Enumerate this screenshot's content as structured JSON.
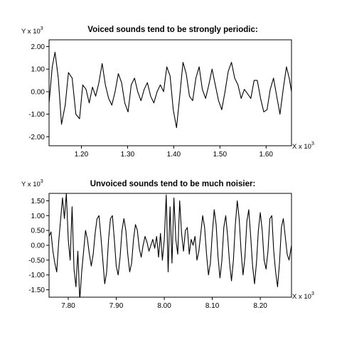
{
  "chart_data": [
    {
      "type": "line",
      "title": "Voiced sounds tend to be strongly periodic:",
      "y_multiplier_label": "Y x 10",
      "x_multiplier_label": "X x 10",
      "multiplier_exponent": "3",
      "xlim": [
        1.13,
        1.655
      ],
      "ylim": [
        -2.4,
        2.3
      ],
      "x_ticks": [
        1.2,
        1.3,
        1.4,
        1.5,
        1.6
      ],
      "x_tick_labels": [
        "1.20",
        "1.30",
        "1.40",
        "1.50",
        "1.60"
      ],
      "y_ticks": [
        2.0,
        1.0,
        0.0,
        -1.0,
        -2.0
      ],
      "y_tick_labels": [
        "2.00",
        "1.00",
        "0.00",
        "-1.00",
        "-2.00"
      ],
      "grid": false,
      "series": [
        {
          "x": [
            1.13,
            1.137,
            1.143,
            1.15,
            1.157,
            1.165,
            1.172,
            1.18,
            1.188,
            1.196,
            1.203,
            1.21,
            1.217,
            1.224,
            1.231,
            1.238,
            1.245,
            1.252,
            1.259,
            1.266,
            1.273,
            1.28,
            1.287,
            1.294,
            1.301,
            1.308,
            1.315,
            1.322,
            1.329,
            1.336,
            1.343,
            1.35,
            1.357,
            1.364,
            1.371,
            1.378,
            1.385,
            1.392,
            1.399,
            1.406,
            1.413,
            1.42,
            1.427,
            1.434,
            1.441,
            1.448,
            1.455,
            1.462,
            1.469,
            1.476,
            1.483,
            1.49,
            1.497,
            1.504,
            1.511,
            1.518,
            1.525,
            1.532,
            1.539,
            1.546,
            1.553,
            1.56,
            1.567,
            1.574,
            1.581,
            1.588,
            1.595,
            1.602,
            1.609,
            1.616,
            1.623,
            1.63,
            1.637,
            1.644,
            1.65,
            1.655
          ],
          "y": [
            -0.5,
            1.1,
            1.75,
            0.6,
            -1.45,
            -0.6,
            0.85,
            0.6,
            -1.0,
            -1.2,
            0.3,
            0.1,
            -0.5,
            0.2,
            -0.2,
            0.4,
            1.25,
            0.3,
            -0.3,
            -0.6,
            0.0,
            0.8,
            0.4,
            -0.5,
            -0.9,
            0.3,
            0.6,
            0.0,
            -0.4,
            0.1,
            0.4,
            -0.2,
            -0.5,
            0.0,
            0.3,
            0.0,
            1.1,
            0.7,
            -0.8,
            -1.6,
            -0.2,
            1.3,
            0.8,
            -0.2,
            -0.4,
            0.6,
            1.1,
            0.1,
            -0.3,
            0.3,
            1.0,
            0.3,
            -0.4,
            -0.8,
            0.0,
            0.9,
            1.3,
            0.6,
            0.3,
            -0.3,
            0.1,
            -0.1,
            -0.3,
            0.5,
            0.5,
            -0.3,
            -0.9,
            -0.8,
            0.1,
            0.6,
            -0.2,
            -1.0,
            0.1,
            1.1,
            0.6,
            0.0
          ]
        }
      ]
    },
    {
      "type": "line",
      "title": "Unvoiced sounds tend to be much noisier:",
      "y_multiplier_label": "Y x 10",
      "x_multiplier_label": "X x 10",
      "multiplier_exponent": "3",
      "xlim": [
        7.76,
        8.265
      ],
      "ylim": [
        -1.75,
        1.75
      ],
      "x_ticks": [
        7.8,
        7.9,
        8.0,
        8.1,
        8.2
      ],
      "x_tick_labels": [
        "7.80",
        "7.90",
        "8.00",
        "8.10",
        "8.20"
      ],
      "y_ticks": [
        1.5,
        1.0,
        0.5,
        0.0,
        -0.5,
        -1.0,
        -1.5
      ],
      "y_tick_labels": [
        "1.50",
        "1.00",
        "0.50",
        "0.00",
        "-0.50",
        "-1.00",
        "-1.50"
      ],
      "grid": false,
      "series": [
        {
          "x": [
            7.76,
            7.764,
            7.768,
            7.772,
            7.776,
            7.78,
            7.784,
            7.788,
            7.792,
            7.796,
            7.8,
            7.804,
            7.808,
            7.812,
            7.816,
            7.82,
            7.824,
            7.828,
            7.832,
            7.836,
            7.84,
            7.844,
            7.848,
            7.852,
            7.856,
            7.86,
            7.864,
            7.868,
            7.872,
            7.876,
            7.88,
            7.884,
            7.888,
            7.892,
            7.896,
            7.9,
            7.904,
            7.908,
            7.912,
            7.916,
            7.92,
            7.924,
            7.928,
            7.932,
            7.936,
            7.94,
            7.944,
            7.948,
            7.952,
            7.956,
            7.96,
            7.964,
            7.968,
            7.972,
            7.976,
            7.98,
            7.984,
            7.988,
            7.992,
            7.996,
            8.0,
            8.004,
            8.008,
            8.012,
            8.016,
            8.02,
            8.024,
            8.028,
            8.032,
            8.036,
            8.04,
            8.044,
            8.048,
            8.052,
            8.056,
            8.06,
            8.064,
            8.068,
            8.072,
            8.076,
            8.08,
            8.084,
            8.088,
            8.092,
            8.096,
            8.1,
            8.104,
            8.108,
            8.112,
            8.116,
            8.12,
            8.124,
            8.128,
            8.132,
            8.136,
            8.14,
            8.144,
            8.148,
            8.152,
            8.156,
            8.16,
            8.164,
            8.168,
            8.172,
            8.176,
            8.18,
            8.184,
            8.188,
            8.192,
            8.196,
            8.2,
            8.204,
            8.208,
            8.212,
            8.216,
            8.22,
            8.224,
            8.228,
            8.232,
            8.236,
            8.24,
            8.244,
            8.248,
            8.252,
            8.256,
            8.26,
            8.265
          ],
          "y": [
            0.3,
            0.45,
            -0.2,
            -0.6,
            -0.9,
            0.1,
            0.85,
            1.6,
            0.9,
            1.75,
            0.2,
            -0.5,
            1.3,
            -0.8,
            -1.4,
            -0.2,
            -1.85,
            -0.9,
            -0.2,
            0.5,
            0.2,
            -0.3,
            -0.7,
            -0.3,
            0.4,
            0.9,
            1.0,
            0.3,
            -0.5,
            -1.3,
            -0.9,
            0.2,
            0.9,
            1.0,
            0.2,
            -0.7,
            -1.0,
            -0.4,
            0.5,
            0.9,
            0.5,
            -0.3,
            -0.9,
            -0.6,
            0.2,
            0.7,
            0.5,
            -0.1,
            -0.4,
            0.0,
            0.3,
            0.1,
            -0.2,
            0.0,
            0.2,
            -0.1,
            0.3,
            -0.4,
            0.4,
            -0.5,
            0.2,
            1.7,
            -0.9,
            1.3,
            -0.6,
            1.6,
            0.2,
            -0.3,
            1.5,
            0.4,
            -0.2,
            0.5,
            0.6,
            -0.3,
            0.2,
            0.0,
            0.3,
            -0.5,
            -0.2,
            0.4,
            1.0,
            0.6,
            -0.3,
            -1.0,
            -0.6,
            0.4,
            1.2,
            0.7,
            -0.4,
            -1.1,
            -0.5,
            0.6,
            1.0,
            0.3,
            -0.6,
            -1.2,
            -0.5,
            0.7,
            1.5,
            0.9,
            -0.2,
            -1.0,
            -0.4,
            0.8,
            1.2,
            0.3,
            -0.7,
            -1.3,
            -0.6,
            0.5,
            1.1,
            0.5,
            -0.5,
            -0.8,
            -0.2,
            0.9,
            1.0,
            -0.2,
            -0.9,
            -1.4,
            -0.6,
            0.6,
            0.9,
            0.3,
            -0.3,
            -0.5,
            0.0
          ]
        }
      ]
    }
  ]
}
